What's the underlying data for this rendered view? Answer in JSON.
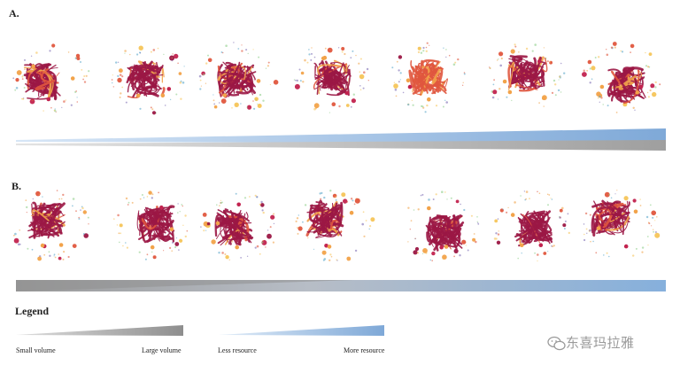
{
  "panels": [
    {
      "label": "A.",
      "networks": 7,
      "bars": [
        {
          "name": "resource",
          "color": "#8fb5de",
          "direction": "increasing"
        },
        {
          "name": "volume",
          "color": "#a9a9a9",
          "direction": "increasing"
        }
      ]
    },
    {
      "label": "B.",
      "networks": 7,
      "bars": [
        {
          "name": "volume-resource",
          "color_left": "#9e9e9e",
          "color_right": "#8fb5de",
          "direction": "crossover"
        }
      ]
    }
  ],
  "legend": {
    "title": "Legend",
    "volume": {
      "left": "Small volume",
      "right": "Large volume",
      "color": "#9a9a9a"
    },
    "resource": {
      "left": "Less resource",
      "right": "More resource",
      "color": "#8fb5de"
    }
  },
  "colors": {
    "core": "#9b1745",
    "accent": "#e0573e",
    "light": "#f2a34a"
  },
  "watermark": {
    "text": "东喜玛拉雅",
    "icon": "wechat-icon"
  }
}
